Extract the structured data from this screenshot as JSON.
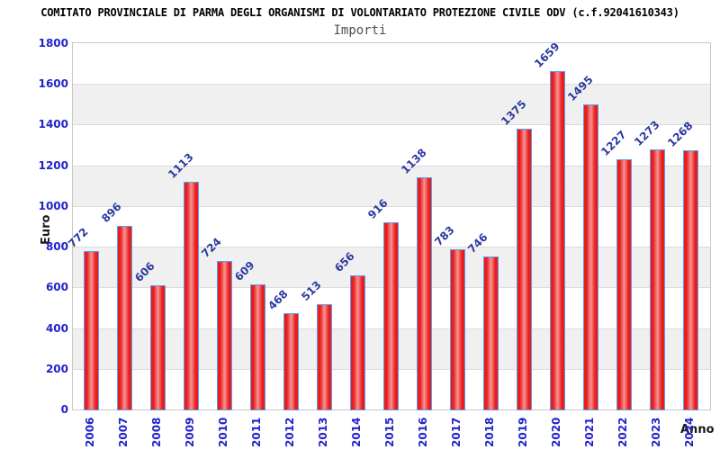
{
  "header": {
    "title": "COMITATO PROVINCIALE DI PARMA DEGLI ORGANISMI DI VOLONTARIATO PROTEZIONE CIVILE ODV (c.f.92041610343)",
    "subtitle": "Importi"
  },
  "axes": {
    "ylabel": "Euro",
    "xlabel": "Anno"
  },
  "colors": {
    "bar_fill": "#ea1c1c",
    "bar_center": "#f59595",
    "bar_border": "#55a0f0",
    "tick_label": "#2222cc",
    "value_label": "#2c3aa0",
    "band_fill": "#f0f0f0",
    "grid_line": "#dcdcdc",
    "frame": "#c8c8c8",
    "title_color": "#000000",
    "subtitle_color": "#505050",
    "axis_title_color": "#1a1a1a"
  },
  "chart_data": {
    "type": "bar",
    "title": "Importi",
    "xlabel": "Anno",
    "ylabel": "Euro",
    "categories": [
      "2006",
      "2007",
      "2008",
      "2009",
      "2010",
      "2011",
      "2012",
      "2013",
      "2014",
      "2015",
      "2016",
      "2017",
      "2018",
      "2019",
      "2020",
      "2021",
      "2022",
      "2023",
      "2024"
    ],
    "values": [
      772,
      896,
      606,
      1113,
      724,
      609,
      468,
      513,
      656,
      916,
      1138,
      783,
      746,
      1375,
      1659,
      1495,
      1227,
      1273,
      1268
    ],
    "ylim": [
      0,
      1800
    ],
    "yticks": [
      0,
      200,
      400,
      600,
      800,
      1000,
      1200,
      1400,
      1600,
      1800
    ],
    "grid": true,
    "bands_alternating": true,
    "legend": null,
    "value_labels_rotation_deg": -45,
    "category_labels_rotation_deg": -90
  }
}
